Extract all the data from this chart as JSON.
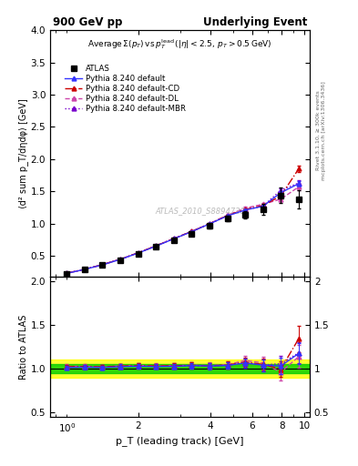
{
  "title_left": "900 GeV pp",
  "title_right": "Underlying Event",
  "ylabel_main": "⟨d² sum p_T/dηdφ⟩ [GeV]",
  "ylabel_ratio": "Ratio to ATLAS",
  "xlabel": "p_T (leading track) [GeV]",
  "watermark": "ATLAS_2010_S8894728",
  "right_label_top": "Rivet 3.1.10, ≥ 300k events",
  "right_label_bot": "mcplots.cern.ch [arXiv:1306.3436]",
  "atlas_x": [
    1.0,
    1.19,
    1.41,
    1.68,
    2.0,
    2.37,
    2.82,
    3.35,
    3.98,
    4.73,
    5.62,
    6.68,
    7.94,
    9.44
  ],
  "atlas_y": [
    0.225,
    0.285,
    0.355,
    0.435,
    0.53,
    0.635,
    0.745,
    0.845,
    0.965,
    1.08,
    1.135,
    1.22,
    1.435,
    1.38
  ],
  "atlas_yerr": [
    0.015,
    0.015,
    0.015,
    0.018,
    0.02,
    0.022,
    0.025,
    0.03,
    0.035,
    0.04,
    0.06,
    0.08,
    0.12,
    0.14
  ],
  "py_default_x": [
    1.0,
    1.19,
    1.41,
    1.68,
    2.0,
    2.37,
    2.82,
    3.35,
    3.98,
    4.73,
    5.62,
    6.68,
    7.94,
    9.44
  ],
  "py_default_y": [
    0.228,
    0.29,
    0.36,
    0.445,
    0.545,
    0.65,
    0.765,
    0.875,
    0.995,
    1.12,
    1.21,
    1.27,
    1.48,
    1.62
  ],
  "py_default_yerr": [
    0.004,
    0.004,
    0.005,
    0.006,
    0.007,
    0.008,
    0.009,
    0.01,
    0.012,
    0.014,
    0.017,
    0.02,
    0.028,
    0.038
  ],
  "py_cd_x": [
    1.0,
    1.19,
    1.41,
    1.68,
    2.0,
    2.37,
    2.82,
    3.35,
    3.98,
    4.73,
    5.62,
    6.68,
    7.94,
    9.44
  ],
  "py_cd_y": [
    0.23,
    0.292,
    0.362,
    0.448,
    0.548,
    0.655,
    0.768,
    0.878,
    0.998,
    1.125,
    1.22,
    1.28,
    1.43,
    1.85
  ],
  "py_cd_yerr": [
    0.004,
    0.004,
    0.005,
    0.006,
    0.007,
    0.008,
    0.009,
    0.01,
    0.012,
    0.014,
    0.017,
    0.02,
    0.035,
    0.055
  ],
  "py_dl_x": [
    1.0,
    1.19,
    1.41,
    1.68,
    2.0,
    2.37,
    2.82,
    3.35,
    3.98,
    4.73,
    5.62,
    6.68,
    7.94,
    9.44
  ],
  "py_dl_y": [
    0.231,
    0.293,
    0.363,
    0.449,
    0.549,
    0.657,
    0.77,
    0.88,
    1.0,
    1.13,
    1.24,
    1.3,
    1.38,
    1.57
  ],
  "py_dl_yerr": [
    0.004,
    0.004,
    0.005,
    0.006,
    0.007,
    0.008,
    0.009,
    0.01,
    0.012,
    0.014,
    0.017,
    0.02,
    0.032,
    0.048
  ],
  "py_mbr_x": [
    1.0,
    1.19,
    1.41,
    1.68,
    2.0,
    2.37,
    2.82,
    3.35,
    3.98,
    4.73,
    5.62,
    6.68,
    7.94,
    9.44
  ],
  "py_mbr_y": [
    0.229,
    0.291,
    0.361,
    0.447,
    0.547,
    0.654,
    0.767,
    0.877,
    0.997,
    1.122,
    1.215,
    1.27,
    1.52,
    1.63
  ],
  "py_mbr_yerr": [
    0.004,
    0.004,
    0.005,
    0.006,
    0.007,
    0.008,
    0.009,
    0.01,
    0.012,
    0.014,
    0.017,
    0.02,
    0.03,
    0.042
  ],
  "ratio_default_y": [
    1.013,
    1.018,
    1.014,
    1.023,
    1.028,
    1.024,
    1.027,
    1.036,
    1.031,
    1.037,
    1.066,
    1.041,
    1.031,
    1.174
  ],
  "ratio_default_yerr": [
    0.022,
    0.022,
    0.022,
    0.025,
    0.027,
    0.027,
    0.029,
    0.032,
    0.035,
    0.038,
    0.052,
    0.068,
    0.09,
    0.12
  ],
  "ratio_cd_y": [
    1.022,
    1.025,
    1.02,
    1.03,
    1.034,
    1.031,
    1.033,
    1.039,
    1.033,
    1.042,
    1.075,
    1.049,
    0.996,
    1.341
  ],
  "ratio_cd_yerr": [
    0.022,
    0.022,
    0.022,
    0.025,
    0.027,
    0.027,
    0.029,
    0.032,
    0.035,
    0.038,
    0.052,
    0.068,
    0.092,
    0.15
  ],
  "ratio_dl_y": [
    1.027,
    1.028,
    1.022,
    1.032,
    1.036,
    1.035,
    1.034,
    1.041,
    1.036,
    1.046,
    1.093,
    1.066,
    0.96,
    1.138
  ],
  "ratio_dl_yerr": [
    0.022,
    0.022,
    0.022,
    0.025,
    0.027,
    0.027,
    0.029,
    0.032,
    0.035,
    0.038,
    0.055,
    0.072,
    0.09,
    0.13
  ],
  "ratio_mbr_y": [
    1.018,
    1.021,
    1.017,
    1.027,
    1.032,
    1.03,
    1.03,
    1.038,
    1.032,
    1.039,
    1.068,
    1.041,
    1.058,
    1.181
  ],
  "ratio_mbr_yerr": [
    0.022,
    0.022,
    0.022,
    0.025,
    0.027,
    0.027,
    0.029,
    0.032,
    0.035,
    0.038,
    0.052,
    0.068,
    0.088,
    0.122
  ],
  "atlas_band_yellow": 0.1,
  "atlas_band_green": 0.05,
  "color_default": "#3333ff",
  "color_cd": "#cc0000",
  "color_dl": "#cc44aa",
  "color_mbr": "#7700cc",
  "color_atlas": "#000000",
  "ylim_main": [
    0.18,
    4.0
  ],
  "ylim_ratio": [
    0.45,
    2.05
  ],
  "xlim": [
    0.85,
    10.5
  ]
}
